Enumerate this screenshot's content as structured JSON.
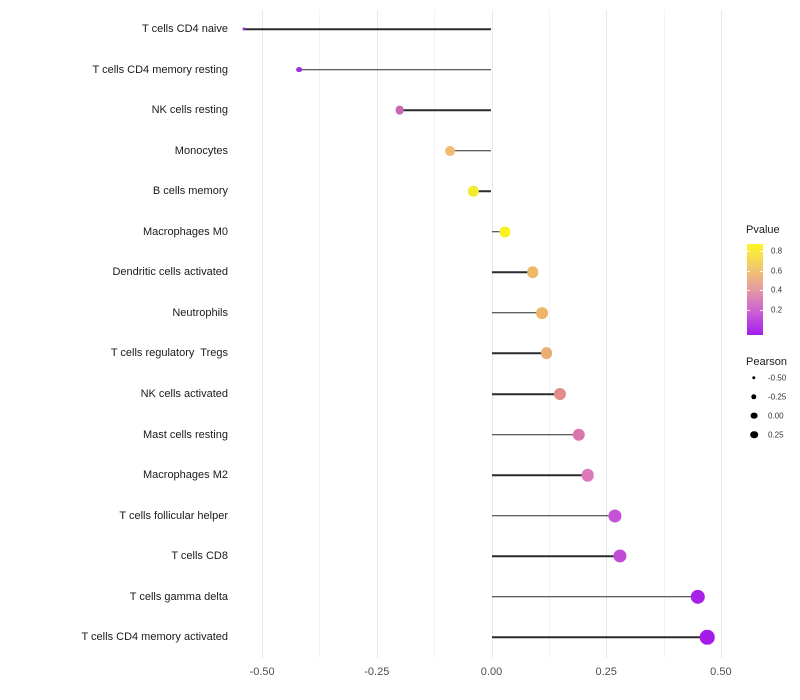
{
  "chart_data": {
    "type": "lollipop",
    "title": "",
    "xlabel": "",
    "ylabel": "",
    "xlim": [
      -0.588,
      0.52
    ],
    "grid": "vertical-major-and-minor",
    "legend_position": "right",
    "x_major_ticks": [
      {
        "label": "-0.50",
        "value": -0.5
      },
      {
        "label": "-0.25",
        "value": -0.25
      },
      {
        "label": "0.00",
        "value": 0.0
      },
      {
        "label": "0.25",
        "value": 0.25
      },
      {
        "label": "0.50",
        "value": 0.5
      }
    ],
    "x_minor_ticks": [
      -0.375,
      -0.125,
      0.125,
      0.375
    ],
    "points": [
      {
        "label": "T cells CD4 naive",
        "pearson": -0.54,
        "pvalue": 0.06,
        "color": "#9c2fe0"
      },
      {
        "label": "T cells CD4 memory resting",
        "pearson": -0.42,
        "pvalue": 0.11,
        "color": "#9c2fe0"
      },
      {
        "label": "NK cells resting",
        "pearson": -0.2,
        "pvalue": 0.32,
        "color": "#c967b2"
      },
      {
        "label": "Monocytes",
        "pearson": -0.09,
        "pvalue": 0.58,
        "color": "#efbc70"
      },
      {
        "label": "B cells memory",
        "pearson": -0.04,
        "pvalue": 0.8,
        "color": "#f3eb2f"
      },
      {
        "label": "Macrophages M0",
        "pearson": 0.03,
        "pvalue": 0.85,
        "color": "#f8f21e"
      },
      {
        "label": "Dendritic cells activated",
        "pearson": 0.09,
        "pvalue": 0.58,
        "color": "#eeb964"
      },
      {
        "label": "Neutrophils",
        "pearson": 0.11,
        "pvalue": 0.57,
        "color": "#eeb569"
      },
      {
        "label": "T cells regulatory  Tregs",
        "pearson": 0.12,
        "pvalue": 0.56,
        "color": "#ebae72"
      },
      {
        "label": "NK cells activated",
        "pearson": 0.15,
        "pvalue": 0.45,
        "color": "#e18b8a"
      },
      {
        "label": "Mast cells resting",
        "pearson": 0.19,
        "pvalue": 0.34,
        "color": "#d877ad"
      },
      {
        "label": "Macrophages M2",
        "pearson": 0.21,
        "pvalue": 0.35,
        "color": "#db79ba"
      },
      {
        "label": "T cells follicular helper",
        "pearson": 0.27,
        "pvalue": 0.22,
        "color": "#c453d8"
      },
      {
        "label": "T cells CD8",
        "pearson": 0.28,
        "pvalue": 0.21,
        "color": "#c24cda"
      },
      {
        "label": "T cells gamma delta",
        "pearson": 0.45,
        "pvalue": 0.09,
        "color": "#a821e8"
      },
      {
        "label": "T cells CD4 memory activated",
        "pearson": 0.47,
        "pvalue": 0.07,
        "color": "#a51cea"
      }
    ],
    "legend": {
      "pvalue": {
        "title": "Pvalue",
        "ticks": [
          "0.8",
          "0.6",
          "0.4",
          "0.2"
        ],
        "gradient_top_to_bottom": [
          "#fcf626",
          "#f3cb69",
          "#e69ba2",
          "#cb5ed4",
          "#a21eef"
        ]
      },
      "pearson": {
        "title": "Pearson",
        "items": [
          {
            "label": "-0.50",
            "diameter": 3.4
          },
          {
            "label": "-0.25",
            "diameter": 5.4
          },
          {
            "label": "0.00",
            "diameter": 6.8
          },
          {
            "label": "0.25",
            "diameter": 7.6
          }
        ]
      }
    }
  }
}
